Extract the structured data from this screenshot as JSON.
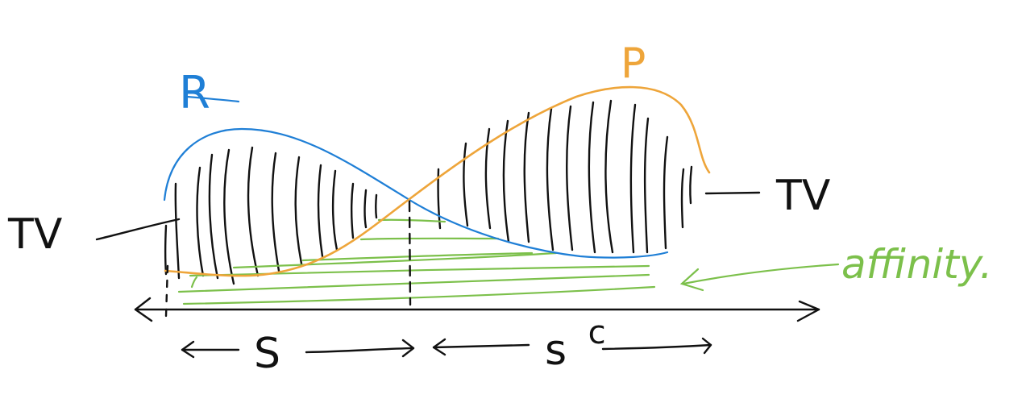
{
  "labels": {
    "r": "R",
    "p": "P",
    "tv_left": "TV",
    "tv_right": "TV",
    "s": "S",
    "s_complement_base": "s",
    "s_complement_sup": "c",
    "affinity": "affinity."
  },
  "colors": {
    "r_curve": "#1f7fd6",
    "p_curve": "#eea53a",
    "affinity": "#7cc04b",
    "ink": "#111111"
  }
}
